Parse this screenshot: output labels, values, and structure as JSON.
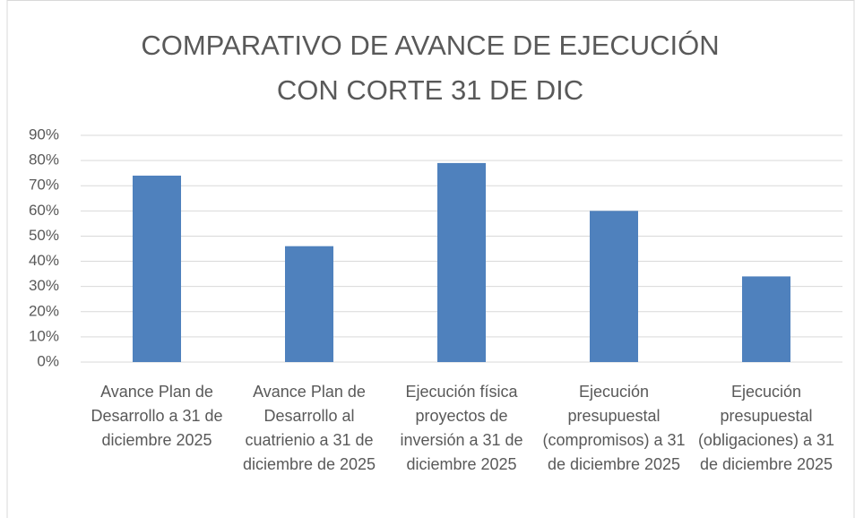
{
  "chart_data": {
    "type": "bar",
    "title": "COMPARATIVO DE AVANCE DE EJECUCIÓN CON CORTE 31 DE DIC",
    "categories": [
      "Avance Plan de Desarrollo a 31 de diciembre 2025",
      "Avance Plan de Desarrollo al cuatrienio a 31 de diciembre de 2025",
      "Ejecución física proyectos de inversión a 31 de diciembre 2025",
      "Ejecución presupuestal (compromisos) a 31 de diciembre 2025",
      "Ejecución presupuestal (obligaciones) a 31 de diciembre 2025"
    ],
    "values": [
      74,
      46,
      79,
      60,
      34
    ],
    "color": "#4f81bd",
    "ylim": [
      0,
      90
    ],
    "yticks": [
      {
        "value": 0,
        "label": "0%"
      },
      {
        "value": 10,
        "label": "10%"
      },
      {
        "value": 20,
        "label": "20%"
      },
      {
        "value": 30,
        "label": "30%"
      },
      {
        "value": 40,
        "label": "40%"
      },
      {
        "value": 50,
        "label": "50%"
      },
      {
        "value": 60,
        "label": "60%"
      },
      {
        "value": 70,
        "label": "70%"
      },
      {
        "value": 80,
        "label": "80%"
      },
      {
        "value": 90,
        "label": "90%"
      }
    ],
    "grid": true
  }
}
